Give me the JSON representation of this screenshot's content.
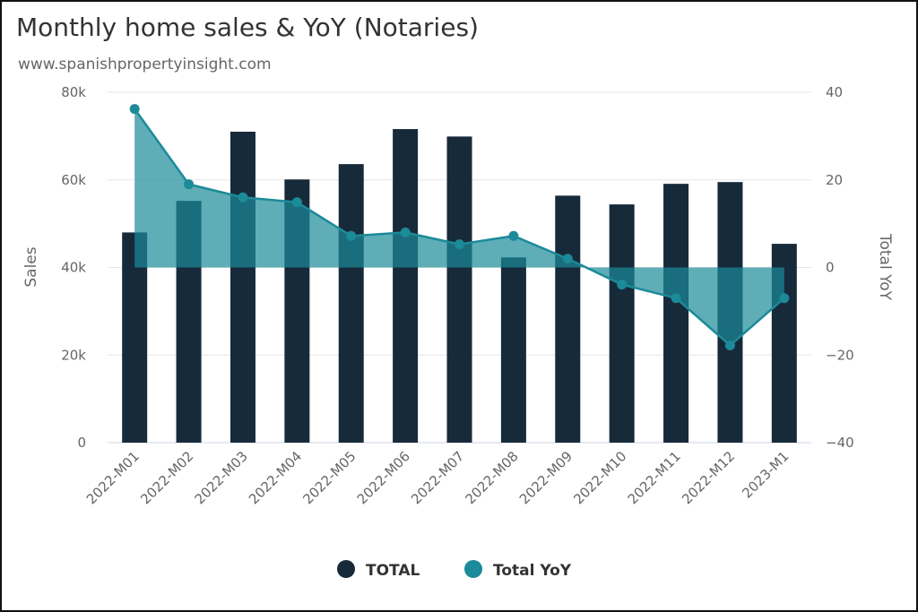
{
  "chart_data": {
    "type": "bar+area",
    "title": "Monthly home sales & YoY (Notaries)",
    "subtitle": "www.spanishpropertyinsight.com",
    "categories": [
      "2022-M01",
      "2022-M02",
      "2022-M03",
      "2022-M04",
      "2022-M05",
      "2022-M06",
      "2022-M07",
      "2022-M08",
      "2022-M09",
      "2022-M10",
      "2022-M11",
      "2022-M12",
      "2023-M1"
    ],
    "series": [
      {
        "name": "TOTAL",
        "type": "bar",
        "axis": "left",
        "color": "#172a3a",
        "values": [
          48000,
          55200,
          71000,
          60100,
          63600,
          71600,
          69900,
          42300,
          56400,
          54400,
          59100,
          59500,
          45400
        ]
      },
      {
        "name": "Total YoY",
        "type": "area",
        "axis": "right",
        "color": "#1b8a99",
        "values": [
          36.2,
          19.0,
          16.0,
          14.9,
          7.2,
          8.0,
          5.3,
          7.2,
          2.0,
          -3.9,
          -7.0,
          -17.8,
          -7.0
        ]
      }
    ],
    "ylabel": "Sales",
    "y2label": "Total YoY",
    "ylim": [
      0,
      80000
    ],
    "y2lim": [
      -40,
      40
    ],
    "yticks": [
      "0",
      "20k",
      "40k",
      "60k",
      "80k"
    ],
    "y2ticks": [
      "−40",
      "−20",
      "0",
      "20",
      "40"
    ],
    "grid": true,
    "legend_position": "bottom-center"
  }
}
